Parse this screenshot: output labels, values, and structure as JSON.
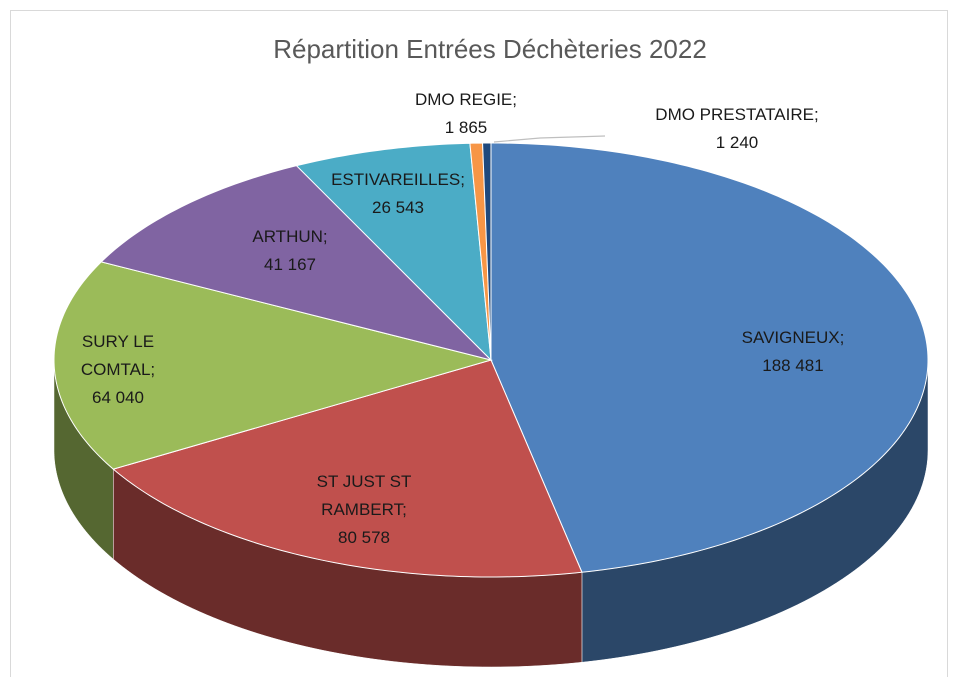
{
  "chart_data": {
    "type": "pie3d",
    "title": "Répartition Entrées Déchèteries 2022",
    "categories": [
      "SAVIGNEUX;",
      "ST JUST ST RAMBERT;",
      "SURY LE COMTAL;",
      "ARTHUN;",
      "ESTIVAREILLES;",
      "DMO REGIE;",
      "DMO PRESTATAIRE;"
    ],
    "values": [
      188481,
      80578,
      64040,
      41167,
      26543,
      1865,
      1240
    ],
    "value_labels": [
      "188 481",
      "80 578",
      "64 040",
      "41 167",
      "26 543",
      "1 865",
      "1 240"
    ],
    "colors": [
      "#4f81bd",
      "#c0504d",
      "#9bbb59",
      "#8064a2",
      "#4bacc6",
      "#f79646",
      "#1f497d"
    ]
  }
}
